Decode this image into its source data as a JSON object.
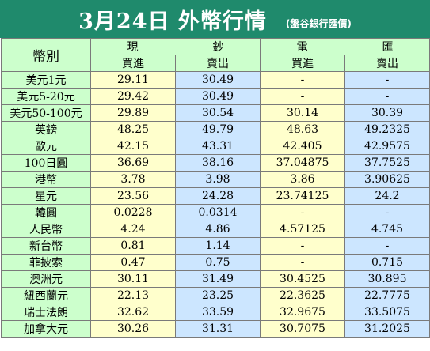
{
  "title": {
    "main": "3月24日 外幣行情",
    "sub": "(盤谷銀行匯價)"
  },
  "header": {
    "currency": "幣別",
    "cash_group": "現　鈔",
    "wire_group": "電　匯",
    "buy": "買進",
    "sell": "賣出"
  },
  "colors": {
    "title_bg": "#1f8a6c",
    "header_bg": "#ccffcc",
    "buy_col_bg": "#ffffcc",
    "sell_col_bg": "#cce6ff"
  },
  "rows": [
    {
      "name": "美元1元",
      "cash_buy": "29.11",
      "cash_sell": "30.49",
      "wire_buy": "-",
      "wire_sell": "-"
    },
    {
      "name": "美元5-20元",
      "cash_buy": "29.42",
      "cash_sell": "30.49",
      "wire_buy": "-",
      "wire_sell": "-"
    },
    {
      "name": "美元50-100元",
      "cash_buy": "29.89",
      "cash_sell": "30.54",
      "wire_buy": "30.14",
      "wire_sell": "30.39"
    },
    {
      "name": "英鎊",
      "cash_buy": "48.25",
      "cash_sell": "49.79",
      "wire_buy": "48.63",
      "wire_sell": "49.2325"
    },
    {
      "name": "歐元",
      "cash_buy": "42.15",
      "cash_sell": "43.31",
      "wire_buy": "42.405",
      "wire_sell": "42.9575"
    },
    {
      "name": "100日圓",
      "cash_buy": "36.69",
      "cash_sell": "38.16",
      "wire_buy": "37.04875",
      "wire_sell": "37.7525"
    },
    {
      "name": "港幣",
      "cash_buy": "3.78",
      "cash_sell": "3.98",
      "wire_buy": "3.86",
      "wire_sell": "3.90625"
    },
    {
      "name": "星元",
      "cash_buy": "23.56",
      "cash_sell": "24.28",
      "wire_buy": "23.74125",
      "wire_sell": "24.2"
    },
    {
      "name": "韓圓",
      "cash_buy": "0.0228",
      "cash_sell": "0.0314",
      "wire_buy": "-",
      "wire_sell": "-"
    },
    {
      "name": "人民幣",
      "cash_buy": "4.24",
      "cash_sell": "4.86",
      "wire_buy": "4.57125",
      "wire_sell": "4.745"
    },
    {
      "name": "新台幣",
      "cash_buy": "0.81",
      "cash_sell": "1.14",
      "wire_buy": "-",
      "wire_sell": "-"
    },
    {
      "name": "菲披索",
      "cash_buy": "0.47",
      "cash_sell": "0.75",
      "wire_buy": "-",
      "wire_sell": "0.715"
    },
    {
      "name": "澳洲元",
      "cash_buy": "30.11",
      "cash_sell": "31.49",
      "wire_buy": "30.4525",
      "wire_sell": "30.895"
    },
    {
      "name": "紐西蘭元",
      "cash_buy": "22.13",
      "cash_sell": "23.25",
      "wire_buy": "22.3625",
      "wire_sell": "22.7775"
    },
    {
      "name": "瑞士法朗",
      "cash_buy": "32.62",
      "cash_sell": "33.59",
      "wire_buy": "32.9675",
      "wire_sell": "33.5075"
    },
    {
      "name": "加拿大元",
      "cash_buy": "30.26",
      "cash_sell": "31.31",
      "wire_buy": "30.7075",
      "wire_sell": "31.2025"
    }
  ]
}
